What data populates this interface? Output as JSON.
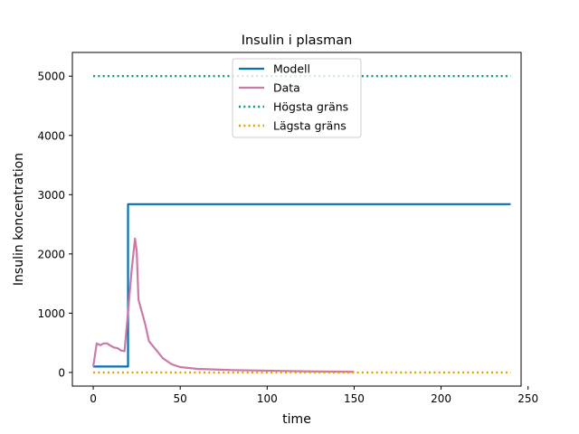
{
  "chart_data": {
    "type": "line",
    "title": "Insulin i plasman",
    "xlabel": "time",
    "ylabel": "Insulin koncentration",
    "xlim": [
      -12,
      246
    ],
    "ylim": [
      -230,
      5400
    ],
    "xticks": [
      0,
      50,
      100,
      150,
      200,
      250
    ],
    "yticks": [
      0,
      1000,
      2000,
      3000,
      4000,
      5000
    ],
    "grid": false,
    "legend_position": "top-center",
    "series": [
      {
        "name": "Modell",
        "color": "#0072b2",
        "style": "solid",
        "x": [
          0,
          20,
          20,
          240
        ],
        "y": [
          100,
          100,
          2840,
          2840
        ]
      },
      {
        "name": "Data",
        "color": "#cc79a7",
        "style": "solid",
        "x": [
          0,
          2,
          4,
          6,
          8,
          10,
          12,
          14,
          16,
          18,
          20,
          22,
          24,
          25,
          26,
          30,
          32,
          40,
          45,
          50,
          60,
          80,
          100,
          120,
          150
        ],
        "y": [
          100,
          490,
          460,
          490,
          490,
          450,
          420,
          410,
          370,
          360,
          1020,
          1700,
          2260,
          2050,
          1230,
          800,
          530,
          240,
          140,
          90,
          60,
          40,
          30,
          20,
          10
        ]
      },
      {
        "name": "Högsta gräns",
        "color": "#009e73",
        "style": "dotted",
        "x": [
          0,
          240
        ],
        "y": [
          5000,
          5000
        ]
      },
      {
        "name": "Lägsta gräns",
        "color": "#e69f00",
        "style": "dotted",
        "x": [
          0,
          240
        ],
        "y": [
          0,
          0
        ]
      }
    ]
  }
}
